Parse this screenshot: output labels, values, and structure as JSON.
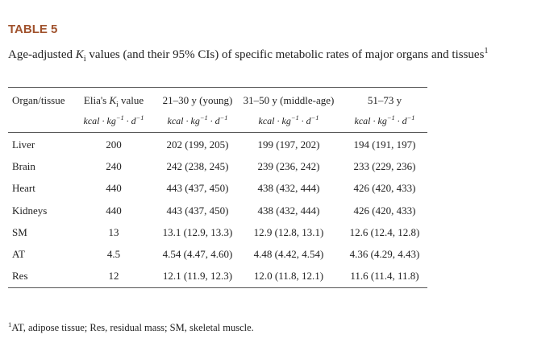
{
  "label": "TABLE 5",
  "title": {
    "before": "Age-adjusted ",
    "var": "K",
    "sub": "i",
    "after": " values (and their 95% CIs) of specific metabolic rates of major organs and tissues",
    "note": "1"
  },
  "table": {
    "header": [
      [
        "Organ/tissue"
      ],
      [
        "Elia's ",
        "K",
        "i",
        " value"
      ],
      [
        "21–30 y (young)"
      ],
      [
        "31–50 y (middle-age)"
      ],
      [
        "51–73 y"
      ]
    ],
    "unit": [
      "kcal · kg",
      "−1",
      " · d",
      "−1"
    ],
    "rows": [
      [
        "Liver",
        "200",
        "202 (199, 205)",
        "199 (197, 202)",
        "194 (191, 197)"
      ],
      [
        "Brain",
        "240",
        "242 (238, 245)",
        "239 (236, 242)",
        "233 (229, 236)"
      ],
      [
        "Heart",
        "440",
        "443 (437, 450)",
        "438 (432, 444)",
        "426 (420, 433)"
      ],
      [
        "Kidneys",
        "440",
        "443 (437, 450)",
        "438 (432, 444)",
        "426 (420, 433)"
      ],
      [
        "SM",
        "13",
        "13.1 (12.9, 13.3)",
        "12.9 (12.8, 13.1)",
        "12.6 (12.4, 12.8)"
      ],
      [
        "AT",
        "4.5",
        "4.54 (4.47, 4.60)",
        "4.48 (4.42, 4.54)",
        "4.36 (4.29, 4.43)"
      ],
      [
        "Res",
        "12",
        "12.1 (11.9, 12.3)",
        "12.0 (11.8, 12.1)",
        "11.6 (11.4, 11.8)"
      ]
    ]
  },
  "footnote": {
    "mark": "1",
    "text": "AT, adipose tissue; Res, residual mass; SM, skeletal muscle."
  }
}
